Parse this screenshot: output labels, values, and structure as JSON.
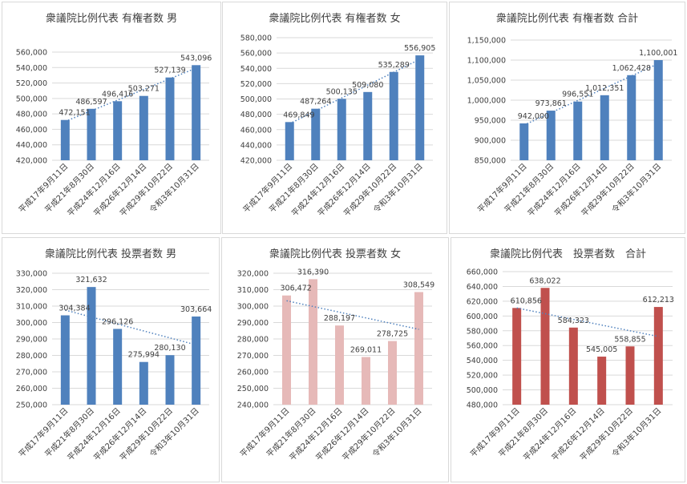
{
  "colors": {
    "blue": "#4f81bd",
    "pink": "#e6b9b8",
    "red": "#c0504d",
    "trend": "#4f81bd",
    "grid": "#d9d9d9",
    "text": "#404040"
  },
  "charts": [
    {
      "chart_data": {
        "type": "bar",
        "title": "衆議院比例代表 有権者数 男",
        "categories": [
          "平成17年9月11日",
          "平成21年8月30日",
          "平成24年12月16日",
          "平成26年12月14日",
          "平成29年10月22日",
          "令和3年10月31日"
        ],
        "values": [
          472151,
          486597,
          496416,
          503271,
          527139,
          543096
        ],
        "data_labels": [
          "472,151",
          "486,597",
          "496,416",
          "503,271",
          "527,139",
          "543,096"
        ],
        "ylim": [
          420000,
          560000
        ],
        "ytick_step": 20000,
        "ytick_labels": [
          "420,000",
          "440,000",
          "460,000",
          "480,000",
          "500,000",
          "520,000",
          "540,000",
          "560,000"
        ],
        "color": "blue",
        "trendline": "linear",
        "grid": true,
        "legend": "none"
      }
    },
    {
      "chart_data": {
        "type": "bar",
        "title": "衆議院比例代表 有権者数 女",
        "categories": [
          "平成17年9月11日",
          "平成21年8月30日",
          "平成24年12月16日",
          "平成26年12月14日",
          "平成29年10月22日",
          "令和3年10月31日"
        ],
        "values": [
          469849,
          487264,
          500135,
          509080,
          535289,
          556905
        ],
        "data_labels": [
          "469,849",
          "487,264",
          "500,135",
          "509,080",
          "535,289",
          "556,905"
        ],
        "ylim": [
          420000,
          580000
        ],
        "ytick_step": 20000,
        "ytick_labels": [
          "420,000",
          "440,000",
          "460,000",
          "480,000",
          "500,000",
          "520,000",
          "540,000",
          "560,000",
          "580,000"
        ],
        "color": "blue",
        "trendline": "linear",
        "grid": true,
        "legend": "none"
      }
    },
    {
      "chart_data": {
        "type": "bar",
        "title": "衆議院比例代表 有権者数 合計",
        "categories": [
          "平成17年9月11日",
          "平成21年8月30日",
          "平成24年12月16日",
          "平成26年12月14日",
          "平成29年10月22日",
          "令和3年10月31日"
        ],
        "values": [
          942000,
          973861,
          996551,
          1012351,
          1062428,
          1100001
        ],
        "data_labels": [
          "942,000",
          "973,861",
          "996,551",
          "1,012,351",
          "1,062,428",
          "1,100,001"
        ],
        "ylim": [
          850000,
          1150000
        ],
        "ytick_step": 50000,
        "ytick_labels": [
          "850,000",
          "900,000",
          "950,000",
          "1,000,000",
          "1,050,000",
          "1,100,000",
          "1,150,000"
        ],
        "color": "blue",
        "trendline": "linear",
        "grid": true,
        "legend": "none"
      }
    },
    {
      "chart_data": {
        "type": "bar",
        "title": "衆議院比例代表 投票者数 男",
        "categories": [
          "平成17年9月11日",
          "平成21年8月30日",
          "平成24年12月16日",
          "平成26年12月14日",
          "平成29年10月22日",
          "令和3年10月31日"
        ],
        "values": [
          304384,
          321632,
          296126,
          275994,
          280130,
          303664
        ],
        "data_labels": [
          "304,384",
          "321,632",
          "296,126",
          "275,994",
          "280,130",
          "303,664"
        ],
        "ylim": [
          250000,
          330000
        ],
        "ytick_step": 10000,
        "ytick_labels": [
          "250,000",
          "260,000",
          "270,000",
          "280,000",
          "290,000",
          "300,000",
          "310,000",
          "320,000",
          "330,000"
        ],
        "color": "blue",
        "trendline": "linear",
        "grid": true,
        "legend": "none"
      }
    },
    {
      "chart_data": {
        "type": "bar",
        "title": "衆議院比例代表 投票者数 女",
        "categories": [
          "平成17年9月11日",
          "平成21年8月30日",
          "平成24年12月16日",
          "平成26年12月14日",
          "平成29年10月22日",
          "令和3年10月31日"
        ],
        "values": [
          306472,
          316390,
          288197,
          269011,
          278725,
          308549
        ],
        "data_labels": [
          "306,472",
          "316,390",
          "288,197",
          "269,011",
          "278,725",
          "308,549"
        ],
        "ylim": [
          240000,
          320000
        ],
        "ytick_step": 10000,
        "ytick_labels": [
          "240,000",
          "250,000",
          "260,000",
          "270,000",
          "280,000",
          "290,000",
          "300,000",
          "310,000",
          "320,000"
        ],
        "color": "pink",
        "trendline": "linear",
        "grid": true,
        "legend": "none"
      }
    },
    {
      "chart_data": {
        "type": "bar",
        "title": "衆議院比例代表　投票者数　合計",
        "categories": [
          "平成17年9月11日",
          "平成21年8月30日",
          "平成24年12月16日",
          "平成26年12月14日",
          "平成29年10月22日",
          "令和3年10月31日"
        ],
        "values": [
          610856,
          638022,
          584323,
          545005,
          558855,
          612213
        ],
        "data_labels": [
          "610,856",
          "638,022",
          "584,323",
          "545,005",
          "558,855",
          "612,213"
        ],
        "ylim": [
          480000,
          660000
        ],
        "ytick_step": 20000,
        "ytick_labels": [
          "480,000",
          "500,000",
          "520,000",
          "540,000",
          "560,000",
          "580,000",
          "600,000",
          "620,000",
          "640,000",
          "660,000"
        ],
        "color": "red",
        "trendline": "linear",
        "grid": true,
        "legend": "none"
      }
    }
  ]
}
